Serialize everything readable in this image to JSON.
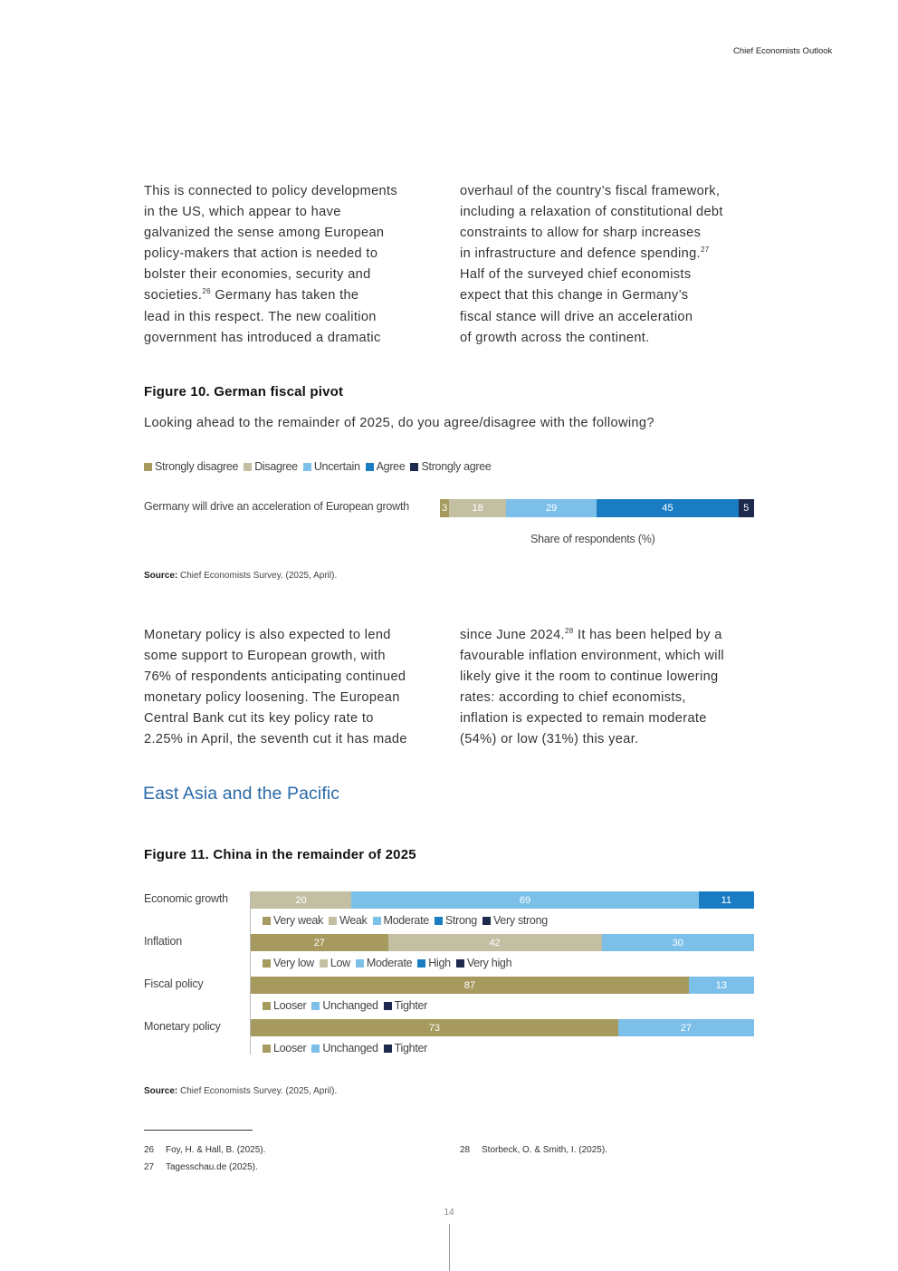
{
  "header": {
    "title": "Chief Economists Outlook"
  },
  "intro": {
    "left": [
      "This is connected to policy developments",
      "in the US, which appear to have",
      "galvanized the sense among European",
      "policy-makers that action is needed to",
      "bolster their economies, security and"
    ],
    "left_sup_line": {
      "a": "societies.",
      "sup": "26",
      "b": " Germany has taken the"
    },
    "left_rest": [
      "lead in this respect. The new coalition",
      "government has introduced a dramatic"
    ],
    "right": [
      "overhaul of the country’s fiscal framework,",
      "including a relaxation of constitutional debt",
      "constraints to allow for sharp increases"
    ],
    "right_sup_line": {
      "a": "in infrastructure and defence spending.",
      "sup": "27"
    },
    "right_rest": [
      "Half of the surveyed chief economists",
      "expect that this change in Germany’s",
      "fiscal stance will drive an acceleration",
      "of growth across the continent."
    ]
  },
  "figure10": {
    "title": "Figure 10. German fiscal pivot",
    "question": "Looking ahead to the remainder of 2025, do you agree/disagree with the following?",
    "source_label": "Source:",
    "source_text": " Chief Economists Survey. (2025, April).",
    "chart_data": {
      "type": "bar",
      "orientation": "horizontal",
      "stacked": true,
      "xlabel": "Share of respondents (%)",
      "legend_position": "top-left",
      "categories": [
        "Germany will drive an acceleration of European growth"
      ],
      "series": [
        {
          "name": "Strongly disagree",
          "values": [
            3
          ],
          "color": "#a69a5e"
        },
        {
          "name": "Disagree",
          "values": [
            18
          ],
          "color": "#c3bfa3"
        },
        {
          "name": "Uncertain",
          "values": [
            29
          ],
          "color": "#7cc0ea"
        },
        {
          "name": "Agree",
          "values": [
            45
          ],
          "color": "#1a7dc3"
        },
        {
          "name": "Strongly agree",
          "values": [
            5
          ],
          "color": "#1d2a4e"
        }
      ]
    }
  },
  "para2": {
    "left": [
      "Monetary policy is also expected to lend",
      "some support to European growth, with",
      "76% of respondents anticipating continued",
      "monetary policy loosening. The European",
      "Central Bank cut its key policy rate to",
      "2.25% in April, the seventh cut it has made"
    ],
    "right_sup_line": {
      "a": "since June 2024.",
      "sup": "28",
      "b": " It has been helped by a"
    },
    "right_rest": [
      "favourable inflation environment, which will",
      "likely give it the room to continue lowering",
      "rates: according to chief economists,",
      "inflation is expected to remain moderate",
      "(54%) or low (31%) this year."
    ]
  },
  "section": {
    "title": "East Asia and the Pacific"
  },
  "figure11": {
    "title": "Figure 11. China in the remainder of 2025",
    "source_label": "Source:",
    "source_text": " Chief Economists Survey. (2025, April).",
    "chart_data": {
      "type": "bar",
      "orientation": "horizontal",
      "stacked": true,
      "xlim": [
        0,
        100
      ],
      "rows": [
        {
          "label": "Economic growth",
          "legend": [
            "Very weak",
            "Weak",
            "Moderate",
            "Strong",
            "Very strong"
          ],
          "values": [
            0,
            20,
            69,
            11,
            0
          ],
          "colors": [
            "#a69a5e",
            "#c3bfa3",
            "#7cc0ea",
            "#1a7dc3",
            "#1d2a4e"
          ]
        },
        {
          "label": "Inflation",
          "legend": [
            "Very low",
            "Low",
            "Moderate",
            "High",
            "Very high"
          ],
          "values": [
            27,
            42,
            30,
            0,
            0
          ],
          "colors": [
            "#a69a5e",
            "#c3bfa3",
            "#7cc0ea",
            "#1a7dc3",
            "#1d2a4e"
          ]
        },
        {
          "label": "Fiscal policy",
          "legend": [
            "Looser",
            "Unchanged",
            "Tighter"
          ],
          "values": [
            87,
            13,
            0
          ],
          "colors": [
            "#a69a5e",
            "#7cc0ea",
            "#1d2a4e"
          ]
        },
        {
          "label": "Monetary policy",
          "legend": [
            "Looser",
            "Unchanged",
            "Tighter"
          ],
          "values": [
            73,
            27,
            0
          ],
          "colors": [
            "#a69a5e",
            "#7cc0ea",
            "#1d2a4e"
          ]
        }
      ]
    }
  },
  "footnotes": [
    {
      "n": "26",
      "text": "Foy, H. & Hall, B. (2025)."
    },
    {
      "n": "27",
      "text": "Tagesschau.de (2025)."
    },
    {
      "n": "28",
      "text": "Storbeck, O. & Smith, I. (2025)."
    }
  ],
  "page_number": "14"
}
